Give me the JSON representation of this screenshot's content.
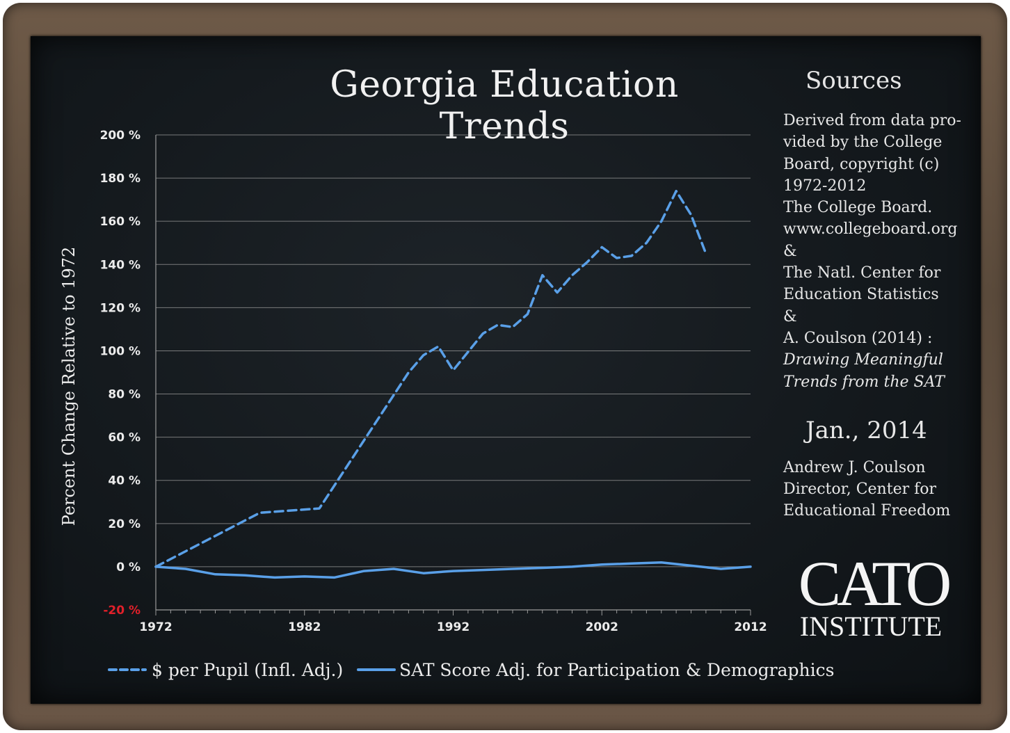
{
  "title": "Georgia Education Trends",
  "sources": {
    "heading": "Sources",
    "lines": [
      "Derived from data pro-",
      "vided by the College",
      "Board, copyright (c)",
      "1972-2012",
      "The College Board.",
      "www.collegeboard.org",
      "&",
      "The Natl. Center for",
      "Education Statistics",
      "&",
      "A. Coulson (2014) :"
    ],
    "italic_lines": [
      "Drawing Meaningful",
      "Trends from the SAT"
    ]
  },
  "date": "Jan., 2014",
  "author": {
    "lines": [
      "Andrew J. Coulson",
      "Director, Center for",
      "Educational Freedom"
    ]
  },
  "logo": {
    "top": "CATO",
    "bottom": "INSTITUTE"
  },
  "colors": {
    "series": "#5aa0e8",
    "negative_tick": "#e0202a",
    "text": "#ececec",
    "grid": "#9a9a9a"
  },
  "chart_data": {
    "type": "line",
    "title": "Georgia Education Trends",
    "ylabel": "Percent Change Relative to 1972",
    "xlabel": "",
    "xlim": [
      1972,
      2012
    ],
    "ylim": [
      -20,
      200
    ],
    "x_ticks": [
      "1972",
      "1982",
      "1992",
      "2002",
      "2012"
    ],
    "y_ticks": [
      "200 %",
      "180 %",
      "160 %",
      "140 %",
      "120 %",
      "100 %",
      "80 %",
      "60 %",
      "40 %",
      "20 %",
      "0 %",
      "-20 %"
    ],
    "legend_position": "bottom",
    "grid": true,
    "series": [
      {
        "name": "$ per Pupil (Infl. Adj.)",
        "style": "dashed",
        "x": [
          1972,
          1979,
          1983,
          1989,
          1990,
          1991,
          1992,
          1994,
          1995,
          1996,
          1997,
          1998,
          1999,
          2000,
          2001,
          2002,
          2003,
          2004,
          2005,
          2006,
          2007,
          2008,
          2009
        ],
        "y": [
          0,
          25,
          27,
          90,
          98,
          102,
          91,
          108,
          112,
          111,
          117,
          135,
          127,
          135,
          141,
          148,
          143,
          144,
          150,
          160,
          174,
          163,
          145
        ]
      },
      {
        "name": "SAT Score Adj. for Participation & Demographics",
        "style": "solid",
        "x": [
          1972,
          1974,
          1976,
          1978,
          1980,
          1982,
          1984,
          1986,
          1988,
          1990,
          1992,
          1994,
          1996,
          1998,
          2000,
          2002,
          2004,
          2006,
          2008,
          2010,
          2012
        ],
        "y": [
          0,
          -1,
          -3.5,
          -4,
          -5,
          -4.5,
          -5,
          -2,
          -1,
          -3,
          -2,
          -1.5,
          -1,
          -0.5,
          0,
          1,
          1.5,
          2,
          0.5,
          -1,
          0
        ]
      }
    ]
  }
}
